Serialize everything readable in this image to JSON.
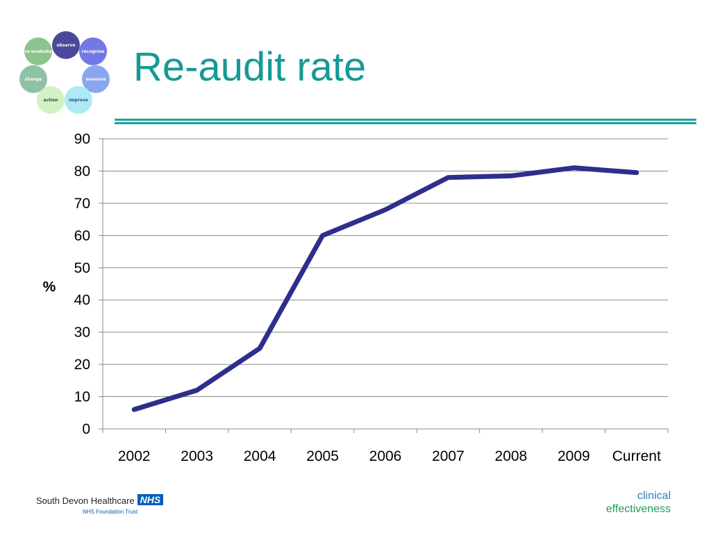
{
  "logo": {
    "items": [
      {
        "label": "observe",
        "color": "#4b4a9a",
        "text_color": "#ffffff"
      },
      {
        "label": "recognise",
        "color": "#7378e6",
        "text_color": "#ffffff"
      },
      {
        "label": "measure",
        "color": "#8aa6ef",
        "text_color": "#ffffff"
      },
      {
        "label": "improve",
        "color": "#aeeaf5",
        "text_color": "#2d4e7a"
      },
      {
        "label": "action",
        "color": "#d2f2c6",
        "text_color": "#2d4e2d"
      },
      {
        "label": "change",
        "color": "#8fc2a5",
        "text_color": "#ffffff"
      },
      {
        "label": "re-evaluate",
        "color": "#8bc48c",
        "text_color": "#ffffff"
      }
    ]
  },
  "title": "Re-audit rate",
  "colors": {
    "title": "#159a96",
    "rule": "#1ba39f",
    "line": "#2e2e8c",
    "grid": "#8a8a8a"
  },
  "chart_data": {
    "type": "line",
    "categories": [
      "2002",
      "2003",
      "2004",
      "2005",
      "2006",
      "2007",
      "2008",
      "2009",
      "Current"
    ],
    "series": [
      {
        "values": [
          6,
          12,
          25,
          60,
          68,
          78,
          78.5,
          81,
          79.5
        ]
      }
    ],
    "xlabel": "",
    "ylabel": "%",
    "ylim": [
      0,
      90
    ],
    "yticks": [
      "0",
      "10",
      "20",
      "30",
      "40",
      "50",
      "60",
      "70",
      "80",
      "90"
    ],
    "grid": true,
    "legend": "none"
  },
  "footer": {
    "org_name": "South Devon Healthcare",
    "nhs": "NHS",
    "org_sub": "NHS Foundation Trust",
    "right_line1": "clinical",
    "right_line2": "effectiveness"
  }
}
